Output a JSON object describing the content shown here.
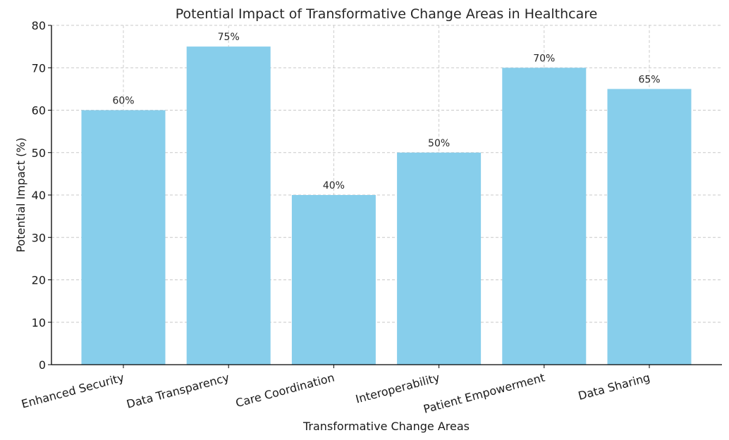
{
  "chart_data": {
    "type": "bar",
    "title": "Potential Impact of Transformative Change Areas in Healthcare",
    "xlabel": "Transformative Change Areas",
    "ylabel": "Potential Impact (%)",
    "categories": [
      "Enhanced Security",
      "Data Transparency",
      "Care Coordination",
      "Interoperability",
      "Patient Empowerment",
      "Data Sharing"
    ],
    "values": [
      60,
      75,
      40,
      50,
      70,
      65
    ],
    "data_labels": [
      "60%",
      "75%",
      "40%",
      "50%",
      "70%",
      "65%"
    ],
    "ylim": [
      0,
      80
    ],
    "yticks": [
      0,
      10,
      20,
      30,
      40,
      50,
      60,
      70,
      80
    ],
    "grid": true,
    "bar_color": "#87CEEB"
  }
}
